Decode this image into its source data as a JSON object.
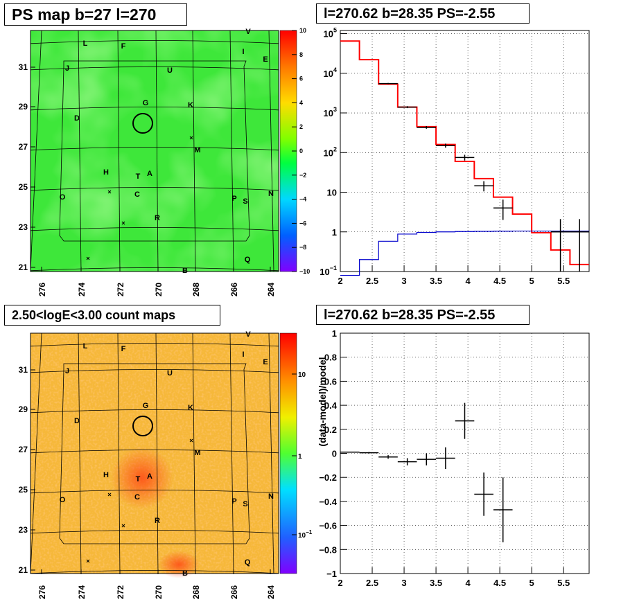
{
  "titles": {
    "ps_map": "PS map b=27 l=270",
    "spectrum": "l=270.62 b=28.35 PS=-2.55",
    "count_map": "2.50<logE<3.00 count maps",
    "residual": "l=270.62 b=28.35 PS=-2.55"
  },
  "map_axes": {
    "x_ticks": [
      "276",
      "274",
      "272",
      "270",
      "268",
      "266",
      "264"
    ],
    "y_ticks": [
      "21",
      "23",
      "25",
      "27",
      "29",
      "31"
    ]
  },
  "source_labels": [
    "L",
    "F",
    "V",
    "I",
    "E",
    "J",
    "U",
    "G",
    "K",
    "D",
    "M",
    "H",
    "T",
    "A",
    "C",
    "O",
    "P",
    "S",
    "N",
    "R",
    "Q",
    "B"
  ],
  "ps_colorbar": {
    "ticks": [
      "10",
      "8",
      "6",
      "4",
      "2",
      "0",
      "−2",
      "−4",
      "−6",
      "−8",
      "−10"
    ]
  },
  "count_colorbar": {
    "ticks": [
      "10",
      "1",
      "10"
    ],
    "tick_exponents": [
      "",
      "",
      "−1"
    ]
  },
  "chart_data": [
    {
      "type": "line",
      "panel": "spectrum",
      "y_scale": "log",
      "xlim": [
        2,
        5.9
      ],
      "ylim": [
        0.1,
        120000
      ],
      "x_ticks": [
        "2",
        "2.5",
        "3",
        "3.5",
        "4",
        "4.5",
        "5",
        "5.5"
      ],
      "y_ticks": [
        {
          "base": "10",
          "exp": "5"
        },
        {
          "base": "10",
          "exp": "4"
        },
        {
          "base": "10",
          "exp": "3"
        },
        {
          "base": "10",
          "exp": "2"
        },
        {
          "base": "10",
          "exp": ""
        },
        {
          "base": "1",
          "exp": ""
        },
        {
          "base": "10",
          "exp": "−1"
        }
      ],
      "grid": true,
      "bin_edges": [
        2.0,
        2.3,
        2.6,
        2.9,
        3.2,
        3.5,
        3.8,
        4.1,
        4.4,
        4.7,
        5.0,
        5.3,
        5.6,
        5.9
      ],
      "series": [
        {
          "type": "step",
          "color": "#ff0000",
          "values": [
            65000,
            22000,
            5300,
            1400,
            450,
            160,
            60,
            22,
            7.5,
            2.8,
            0.95,
            0.35,
            0.15
          ]
        },
        {
          "type": "step",
          "color": "#0000cc",
          "values": [
            0.08,
            0.2,
            0.58,
            0.88,
            0.97,
            1.0,
            1.02,
            1.03,
            1.04,
            1.05,
            1.05,
            1.05,
            1.05
          ]
        },
        {
          "type": "errorbar",
          "color": "#000000",
          "points": [
            {
              "x": 2.75,
              "y": 5500,
              "xerr": 0.15,
              "ylo": 5300,
              "yhi": 5700
            },
            {
              "x": 3.05,
              "y": 1400,
              "xerr": 0.15,
              "ylo": 1320,
              "yhi": 1480
            },
            {
              "x": 3.35,
              "y": 430,
              "xerr": 0.15,
              "ylo": 400,
              "yhi": 465
            },
            {
              "x": 3.65,
              "y": 150,
              "xerr": 0.15,
              "ylo": 133,
              "yhi": 168
            },
            {
              "x": 3.95,
              "y": 75,
              "xerr": 0.15,
              "ylo": 63,
              "yhi": 88
            },
            {
              "x": 4.25,
              "y": 14.5,
              "xerr": 0.15,
              "ylo": 10.5,
              "yhi": 19
            },
            {
              "x": 4.55,
              "y": 4.0,
              "xerr": 0.15,
              "ylo": 2.0,
              "yhi": 6.5
            },
            {
              "x": 5.45,
              "y": 1.0,
              "xerr": 0.15,
              "ylo": 0.1,
              "yhi": 2.1
            },
            {
              "x": 5.75,
              "y": 1.0,
              "xerr": 0.15,
              "ylo": 0.1,
              "yhi": 2.1
            }
          ]
        }
      ]
    },
    {
      "type": "scatter",
      "panel": "residual",
      "xlim": [
        2,
        5.9
      ],
      "ylim": [
        -1,
        1
      ],
      "ylabel": "(data-model)/model",
      "x_ticks": [
        "2",
        "2.5",
        "3",
        "3.5",
        "4",
        "4.5",
        "5",
        "5.5"
      ],
      "y_ticks": [
        "1",
        "0.8",
        "0.6",
        "0.4",
        "0.2",
        "0",
        "−0.2",
        "−0.4",
        "−0.6",
        "−0.8",
        "−1"
      ],
      "grid": true,
      "points": [
        {
          "x": 2.15,
          "y": 0.01,
          "xerr": 0.15,
          "yerr": 0.004
        },
        {
          "x": 2.45,
          "y": 0.005,
          "xerr": 0.15,
          "yerr": 0.006
        },
        {
          "x": 2.75,
          "y": -0.03,
          "xerr": 0.15,
          "yerr": 0.015
        },
        {
          "x": 3.05,
          "y": -0.07,
          "xerr": 0.15,
          "yerr": 0.03
        },
        {
          "x": 3.35,
          "y": -0.05,
          "xerr": 0.15,
          "yerr": 0.05
        },
        {
          "x": 3.65,
          "y": -0.04,
          "xerr": 0.15,
          "yerr": 0.09
        },
        {
          "x": 3.95,
          "y": 0.27,
          "xerr": 0.15,
          "yerr": 0.15
        },
        {
          "x": 4.25,
          "y": -0.34,
          "xerr": 0.15,
          "yerr": 0.18
        },
        {
          "x": 4.55,
          "y": -0.47,
          "xerr": 0.15,
          "yerr": 0.27
        }
      ]
    }
  ]
}
